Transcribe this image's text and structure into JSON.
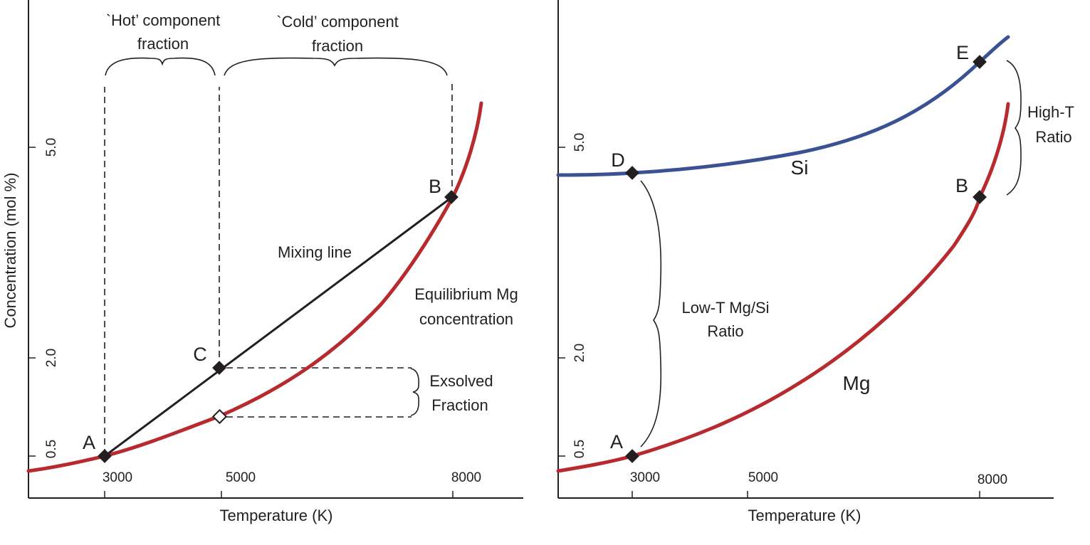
{
  "colors": {
    "mg_curve": "#b72a2e",
    "si_curve": "#3a5294",
    "ink": "#231f20",
    "background": "#ffffff"
  },
  "chart_data": [
    {
      "type": "line",
      "panel": "left",
      "xlabel": "Temperature (K)",
      "ylabel": "Concentration (mol %)",
      "x_ticks": [
        "3000",
        "5000",
        "8000"
      ],
      "y_ticks": [
        "0.5",
        "2.0",
        "5.0"
      ],
      "series": [
        {
          "label": "Equilibrium Mg concentration",
          "label_lines": [
            "Equilibrium  Mg",
            "concentration"
          ],
          "x": [
            2000,
            3000,
            4000,
            5000,
            6000,
            7000,
            8000,
            8400
          ],
          "y": [
            0.38,
            0.5,
            0.84,
            1.08,
            1.5,
            2.35,
            3.8,
            5.75
          ]
        },
        {
          "label": "Mixing line",
          "x": [
            3000,
            8000
          ],
          "y": [
            0.5,
            3.8
          ]
        }
      ],
      "points": [
        {
          "label": "A",
          "x": 3000,
          "y": 0.5,
          "marker": "filled-diamond"
        },
        {
          "label": "B",
          "x": 8000,
          "y": 3.8,
          "marker": "filled-diamond"
        },
        {
          "label": "C",
          "x": 5000,
          "y": 1.74,
          "marker": "filled-diamond"
        },
        {
          "label": "",
          "x": 5000,
          "y": 1.08,
          "marker": "open-diamond"
        }
      ],
      "annotations": {
        "hot_fraction": [
          "`Hot’ component",
          "fraction"
        ],
        "cold_fraction": [
          "`Cold’ component",
          "fraction"
        ],
        "exsolved": [
          "Exsolved",
          "Fraction"
        ]
      }
    },
    {
      "type": "line",
      "panel": "right",
      "xlabel": "Temperature (K)",
      "x_ticks": [
        "3000",
        "5000",
        "8000"
      ],
      "y_ticks": [
        "0.5",
        "2.0",
        "5.0"
      ],
      "series": [
        {
          "name": "Si",
          "x": [
            2000,
            3000,
            4000,
            5000,
            6000,
            7000,
            8000,
            8350
          ],
          "y": [
            4.62,
            4.65,
            4.75,
            4.93,
            5.2,
            5.6,
            6.2,
            6.55
          ]
        },
        {
          "name": "Mg",
          "x": [
            2000,
            3000,
            4000,
            5000,
            6000,
            7000,
            8000,
            8350
          ],
          "y": [
            0.38,
            0.5,
            0.84,
            1.08,
            1.5,
            2.35,
            3.8,
            5.75
          ]
        }
      ],
      "points": [
        {
          "label": "A",
          "x": 3000,
          "y": 0.5
        },
        {
          "label": "B",
          "x": 8000,
          "y": 3.8
        },
        {
          "label": "D",
          "x": 3000,
          "y": 4.65
        },
        {
          "label": "E",
          "x": 8000,
          "y": 6.2
        }
      ],
      "annotations": {
        "high_t": [
          "High-T",
          "Ratio"
        ],
        "low_t": [
          "Low-T Mg/Si",
          "Ratio"
        ]
      }
    }
  ]
}
